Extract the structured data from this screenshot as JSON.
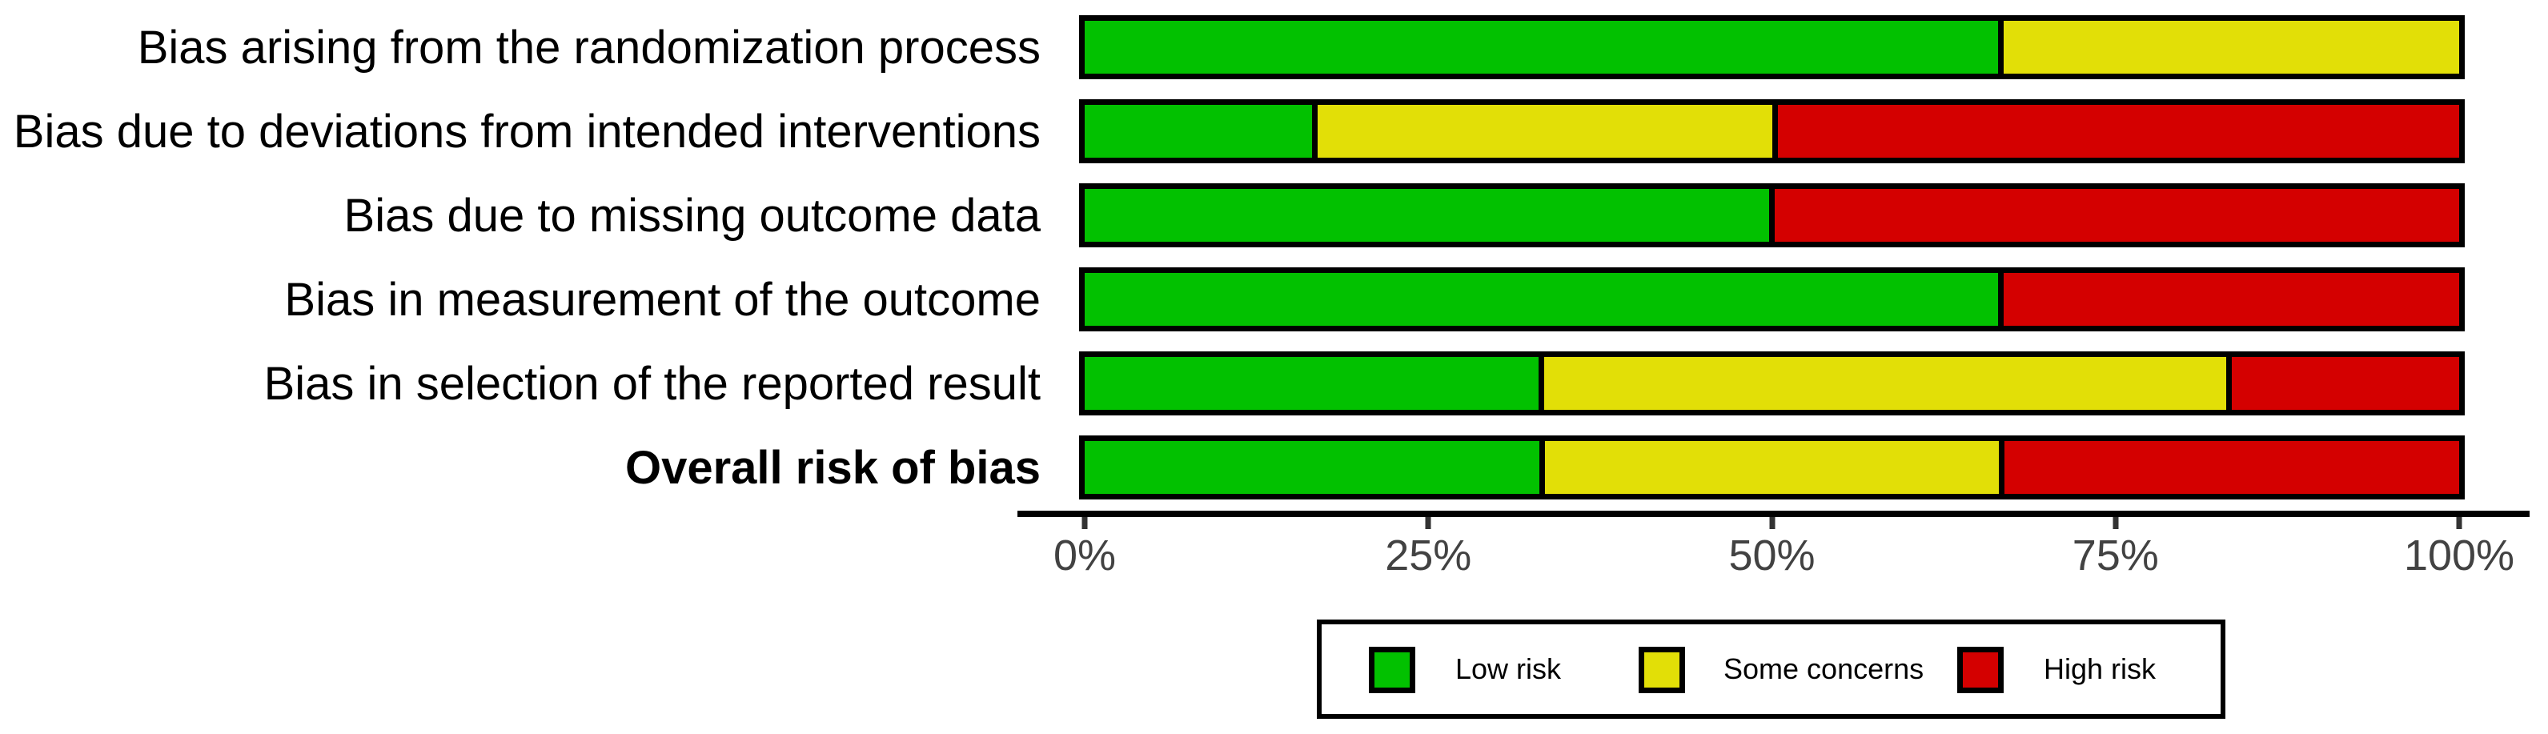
{
  "colors": {
    "low": "#02C100",
    "some_concerns": "#E2DF07",
    "high": "#D40000",
    "axis_line": "#000000",
    "tick_text": "#424242"
  },
  "chart_data": {
    "type": "bar",
    "orientation": "horizontal",
    "stacked": true,
    "unit": "percent",
    "title": "",
    "xlabel": "",
    "ylabel": "",
    "xlim": [
      0,
      100
    ],
    "x_tick_values": [
      0,
      25,
      50,
      75,
      100
    ],
    "x_tick_labels": [
      "0%",
      "25%",
      "50%",
      "75%",
      "100%"
    ],
    "grid": false,
    "legend_position": "bottom",
    "categories": [
      "Bias arising from the randomization process",
      "Bias due to deviations from intended interventions",
      "Bias due to missing outcome data",
      "Bias in measurement of the outcome",
      "Bias in selection of the reported result",
      "Overall risk of bias"
    ],
    "bold_category_indices": [
      5
    ],
    "series": [
      {
        "name": "Low risk",
        "color_key": "low",
        "values": [
          66.7,
          16.7,
          50.0,
          66.7,
          33.3,
          33.3
        ]
      },
      {
        "name": "Some concerns",
        "color_key": "some_concerns",
        "values": [
          33.3,
          33.3,
          0.0,
          0.0,
          50.0,
          33.3
        ]
      },
      {
        "name": "High risk",
        "color_key": "high",
        "values": [
          0.0,
          50.0,
          50.0,
          33.3,
          16.7,
          33.3
        ]
      }
    ]
  },
  "legend": {
    "items": [
      {
        "label": "Low risk",
        "color_key": "low"
      },
      {
        "label": "Some concerns",
        "color_key": "some_concerns"
      },
      {
        "label": "High risk",
        "color_key": "high"
      }
    ]
  }
}
